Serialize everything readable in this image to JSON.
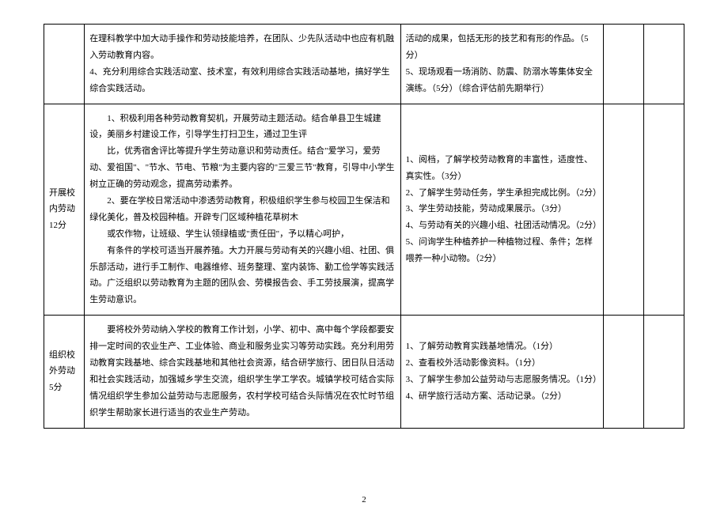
{
  "rows": [
    {
      "label": "",
      "desc": "在理科教学中加大动手操作和劳动技能培养，在团队、少先队活动中也应有机融入劳动教育内容。\n4、充分利用综合实践活动室、技术室，有效利用综合实践活动基地，搞好学生综合实践活动。",
      "criteria": "活动的成果，包括无形的技艺和有形的作品。（5分）\n5、现场观看一场消防、防震、防溺水等集体安全演练。（5分）（综合评估前先期举行）"
    },
    {
      "label": "开展校内劳动12分",
      "desc": "1、积极利用各种劳动教育契机，开展劳动主题活动。结合单县卫生城建设，美丽乡村建设工作，引导学生打扫卫生，通过卫生评\n比，优秀宿舍评比等提升学生劳动意识和劳动责任。结合\"爱学习，爱劳动、爱祖国\"、\"节水、节电、节粮\"为主要内容的\"三爱三节\"教育，引导中小学生树立正确的劳动观念，提高劳动素养。\n2、要在学校日常活动中渗透劳动教育，积极组织学生参与校园卫生保洁和绿化美化，普及校园种植。开辟专门区域种植花草树木\n或农作物，让班级、学生认领绿植或\"责任田\"，予以精心呵护，\n有条件的学校可适当开展养殖。大力开展与劳动有关的兴趣小组、社团、俱乐部活动，进行手工制作、电器维修、班务整理、室内装饰、勤工俭学等实践活动。广泛组织以劳动教育为主题的团队会、劳模报告会、手工劳技展演，提高学生劳动意识。",
      "criteria": "1、阅档，了解学校劳动教育的丰富性，适度性、真实性。（3分）\n2、了解学生劳动任务，学生承担完成比例。（2分）\n3、学生劳动技能，劳动成果展示。（3分）\n4、与劳动有关的兴趣小组、社团活动情况。（2分）\n5、问询学生种植养护一种植物过程、条件；怎样喂养一种小动物。（2分）"
    },
    {
      "label": "组织校外劳动5分",
      "desc": "要将校外劳动纳入学校的教育工作计划，小学、初中、高中每个学段都要安排一定时间的农业生产、工业体验、商业和服务业实习等劳动实践。充分利用劳动教育实践基地、综合实践基地和其他社会资源，结合研学旅行、团日队日活动和社会实践活动，加强城乡学生交流，组织学生学工学农。城镇学校可结合实际情况组织学生参加公益劳动与志愿服务，农村学校可结合头际情况在农忙时节组织学生帮助家长进行适当的农业生产劳动。",
      "criteria": "1、了解劳动教育实践基地情况。（1分）\n2、查看校外活动影像资料。（1分）\n3、了解学生参加公益劳动与志愿服务情况。（1分）\n4、研学旅行活动方案、活动记录。（2分）"
    }
  ],
  "pageNumber": "2"
}
